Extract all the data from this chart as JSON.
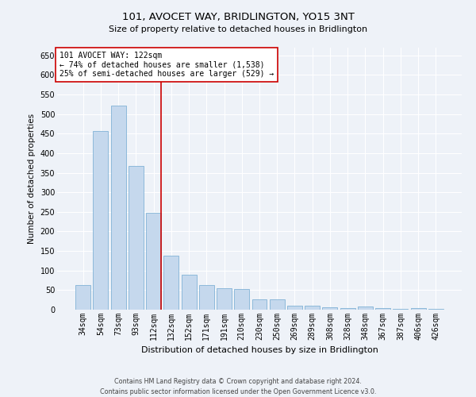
{
  "title": "101, AVOCET WAY, BRIDLINGTON, YO15 3NT",
  "subtitle": "Size of property relative to detached houses in Bridlington",
  "xlabel": "Distribution of detached houses by size in Bridlington",
  "ylabel": "Number of detached properties",
  "categories": [
    "34sqm",
    "54sqm",
    "73sqm",
    "93sqm",
    "112sqm",
    "132sqm",
    "152sqm",
    "171sqm",
    "191sqm",
    "210sqm",
    "230sqm",
    "250sqm",
    "269sqm",
    "289sqm",
    "308sqm",
    "328sqm",
    "348sqm",
    "367sqm",
    "387sqm",
    "406sqm",
    "426sqm"
  ],
  "values": [
    62,
    456,
    522,
    368,
    248,
    138,
    90,
    62,
    55,
    53,
    26,
    26,
    11,
    11,
    6,
    5,
    8,
    4,
    3,
    5,
    3
  ],
  "bar_color": "#c5d8ed",
  "bar_edge_color": "#6fa8d0",
  "vline_x_index": 4,
  "annotation_text_line1": "101 AVOCET WAY: 122sqm",
  "annotation_text_line2": "← 74% of detached houses are smaller (1,538)",
  "annotation_text_line3": "25% of semi-detached houses are larger (529) →",
  "annotation_box_color": "#ffffff",
  "annotation_box_edge_color": "#cc0000",
  "vline_color": "#cc0000",
  "ylim": [
    0,
    670
  ],
  "yticks": [
    0,
    50,
    100,
    150,
    200,
    250,
    300,
    350,
    400,
    450,
    500,
    550,
    600,
    650
  ],
  "background_color": "#eef2f8",
  "footer_line1": "Contains HM Land Registry data © Crown copyright and database right 2024.",
  "footer_line2": "Contains public sector information licensed under the Open Government Licence v3.0.",
  "title_fontsize": 9.5,
  "subtitle_fontsize": 8,
  "xlabel_fontsize": 8,
  "ylabel_fontsize": 7.5,
  "tick_fontsize": 7,
  "annotation_fontsize": 7,
  "footer_fontsize": 5.8
}
